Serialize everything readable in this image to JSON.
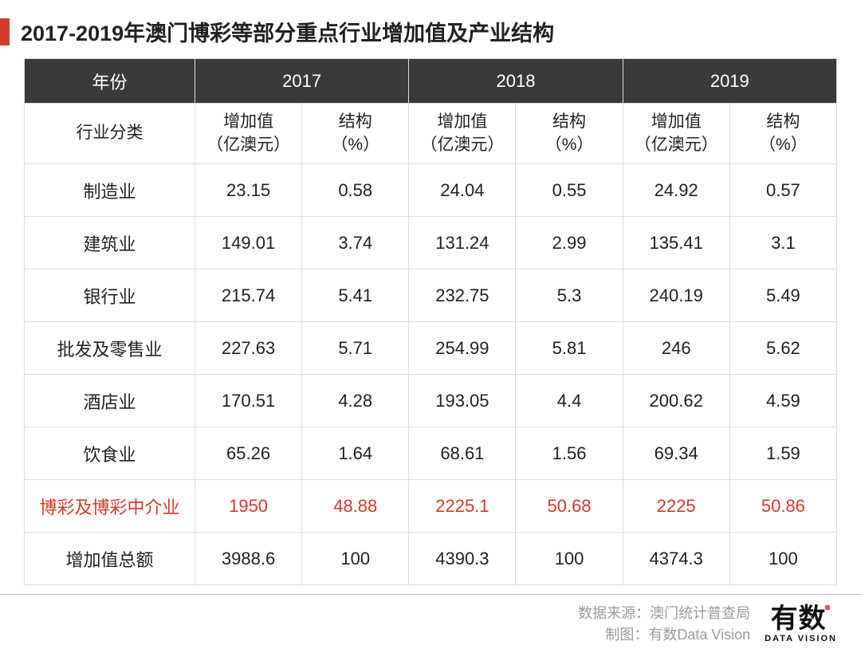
{
  "colors": {
    "accent": "#d8392b",
    "header_bg": "#3a3a3a",
    "header_fg": "#ffffff",
    "border": "#dcdcdc",
    "text": "#222222",
    "highlight": "#d8392b",
    "footer_text": "#9a9a9a",
    "footer_divider": "#bdbdbd"
  },
  "title": "2017-2019年澳门博彩等部分重点行业增加值及产业结构",
  "table": {
    "header_years": [
      "年份",
      "2017",
      "2018",
      "2019"
    ],
    "sub_labels": {
      "category": "行业分类",
      "value": "增加值\n（亿澳元）",
      "share": "结构\n（%）"
    },
    "rows": [
      {
        "label": "制造业",
        "v17": "23.15",
        "s17": "0.58",
        "v18": "24.04",
        "s18": "0.55",
        "v19": "24.92",
        "s19": "0.57",
        "highlight": false
      },
      {
        "label": "建筑业",
        "v17": "149.01",
        "s17": "3.74",
        "v18": "131.24",
        "s18": "2.99",
        "v19": "135.41",
        "s19": "3.1",
        "highlight": false
      },
      {
        "label": "银行业",
        "v17": "215.74",
        "s17": "5.41",
        "v18": "232.75",
        "s18": "5.3",
        "v19": "240.19",
        "s19": "5.49",
        "highlight": false
      },
      {
        "label": "批发及零售业",
        "v17": "227.63",
        "s17": "5.71",
        "v18": "254.99",
        "s18": "5.81",
        "v19": "246",
        "s19": "5.62",
        "highlight": false
      },
      {
        "label": "酒店业",
        "v17": "170.51",
        "s17": "4.28",
        "v18": "193.05",
        "s18": "4.4",
        "v19": "200.62",
        "s19": "4.59",
        "highlight": false
      },
      {
        "label": "饮食业",
        "v17": "65.26",
        "s17": "1.64",
        "v18": "68.61",
        "s18": "1.56",
        "v19": "69.34",
        "s19": "1.59",
        "highlight": false
      },
      {
        "label": "博彩及博彩中介业",
        "v17": "1950",
        "s17": "48.88",
        "v18": "2225.1",
        "s18": "50.68",
        "v19": "2225",
        "s19": "50.86",
        "highlight": true
      },
      {
        "label": "增加值总额",
        "v17": "3988.6",
        "s17": "100",
        "v18": "4390.3",
        "s18": "100",
        "v19": "4374.3",
        "s19": "100",
        "highlight": false
      }
    ]
  },
  "footer": {
    "source_label": "数据来源：",
    "source_value": "澳门统计普查局",
    "credit_label": "制图：",
    "credit_value": "有数Data Vision",
    "logo_main": "有数",
    "logo_sub": "DATA VISION"
  }
}
